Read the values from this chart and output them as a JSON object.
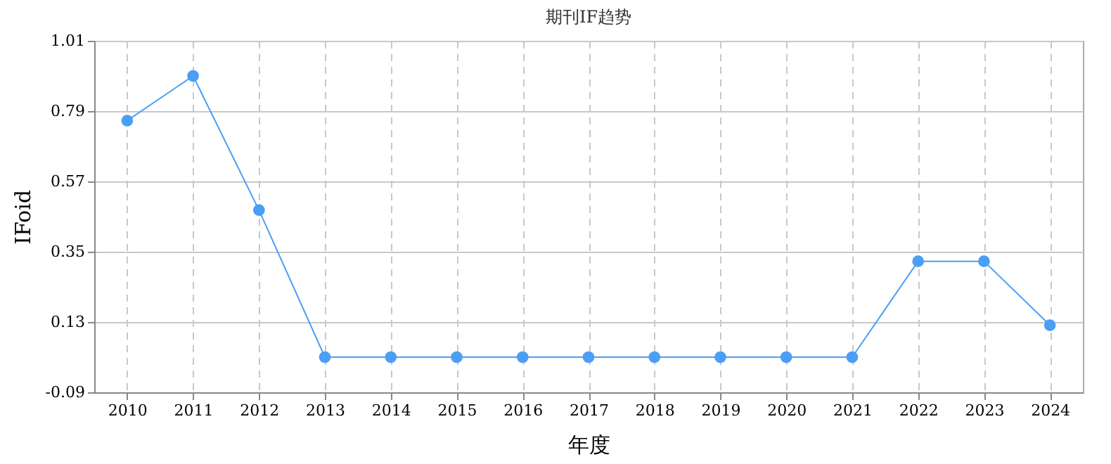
{
  "chart_data": {
    "type": "line",
    "title": "期刊IF趋势",
    "xlabel": "年度",
    "ylabel": "IFoid",
    "categories": [
      "2010",
      "2011",
      "2012",
      "2013",
      "2014",
      "2015",
      "2016",
      "2017",
      "2018",
      "2019",
      "2020",
      "2021",
      "2022",
      "2023",
      "2024"
    ],
    "series": [
      {
        "color": "#4a9ff5",
        "values": [
          0.76,
          0.9,
          0.48,
          0.02,
          0.02,
          0.02,
          0.02,
          0.02,
          0.02,
          0.02,
          0.02,
          0.02,
          0.32,
          0.32,
          0.12
        ]
      }
    ],
    "ylim": [
      -0.09,
      1.01
    ],
    "yticks": [
      -0.09,
      0.13,
      0.35,
      0.57,
      0.79,
      1.01
    ],
    "grid": true,
    "marker": "circle",
    "line_style": "solid"
  }
}
